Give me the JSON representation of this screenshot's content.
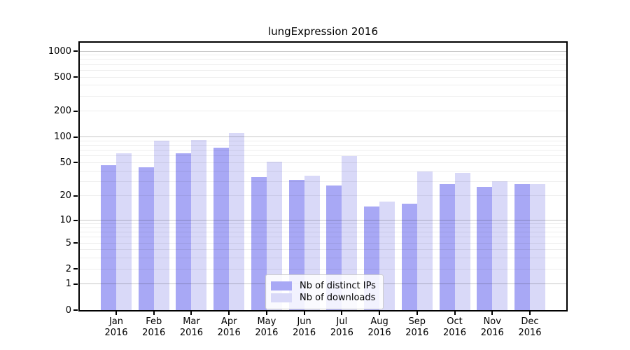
{
  "figure": {
    "title": "lungExpression 2016"
  },
  "chart_data": {
    "type": "bar",
    "title": "lungExpression 2016",
    "categories": [
      "Jan",
      "Feb",
      "Mar",
      "Apr",
      "May",
      "Jun",
      "Jul",
      "Aug",
      "Sep",
      "Oct",
      "Nov",
      "Dec"
    ],
    "x_tick_line2": "2016",
    "series": [
      {
        "name": "Nb of distinct IPs",
        "color": "#a8a8f5",
        "values": [
          47,
          44,
          64,
          75,
          34,
          31,
          27,
          15,
          16,
          28,
          26,
          28
        ]
      },
      {
        "name": "Nb of downloads",
        "color": "#d9d9f8",
        "values": [
          65,
          90,
          92,
          112,
          51,
          35,
          60,
          17,
          39,
          38,
          30,
          28
        ]
      }
    ],
    "yscale": "log1p",
    "yticks": [
      0,
      1,
      2,
      5,
      10,
      20,
      50,
      100,
      200,
      500,
      1000
    ],
    "ylim": [
      0,
      1275
    ],
    "grid": true,
    "legend": {
      "position": "lower-center",
      "entries": [
        "Nb of distinct IPs",
        "Nb of downloads"
      ]
    }
  },
  "style": {
    "bar_color_distinct_ips": "#a8a8f5",
    "bar_color_downloads": "#d9d9f8",
    "grid_major_color": "rgba(0,0,0,0.22)",
    "grid_minor_color": "rgba(0,0,0,0.07)",
    "axis_color": "#000000",
    "legend_border_color": "#cccccc"
  }
}
